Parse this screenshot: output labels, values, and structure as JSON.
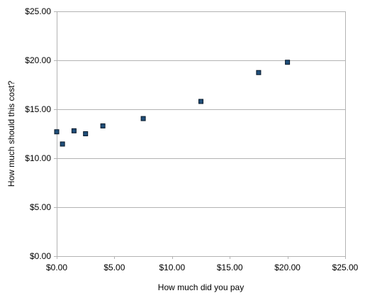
{
  "chart_data": {
    "type": "scatter",
    "title": "",
    "xlabel": "How much did you pay",
    "ylabel": "How much should this cost?",
    "xlim": [
      0,
      25
    ],
    "ylim": [
      0,
      25
    ],
    "x_ticks": [
      0,
      5,
      10,
      15,
      20,
      25
    ],
    "y_ticks": [
      0,
      5,
      10,
      15,
      20,
      25
    ],
    "x_tick_labels": [
      "$0.00",
      "$5.00",
      "$10.00",
      "$15.00",
      "$20.00",
      "$25.00"
    ],
    "y_tick_labels": [
      "$0.00",
      "$5.00",
      "$10.00",
      "$15.00",
      "$20.00",
      "$25.00"
    ],
    "grid": "horizontal",
    "legend": "none",
    "marker": "square",
    "marker_color": "#1f4e79",
    "marker_edge_color": "#0a1a2a",
    "grid_color": "#b3b3b3",
    "series": [
      {
        "points": [
          {
            "x": 0.0,
            "y": 12.7
          },
          {
            "x": 0.5,
            "y": 11.45
          },
          {
            "x": 1.5,
            "y": 12.8
          },
          {
            "x": 2.5,
            "y": 12.5
          },
          {
            "x": 4.0,
            "y": 13.3
          },
          {
            "x": 7.5,
            "y": 14.05
          },
          {
            "x": 12.5,
            "y": 15.8
          },
          {
            "x": 17.5,
            "y": 18.75
          },
          {
            "x": 20.0,
            "y": 19.8
          }
        ]
      }
    ]
  }
}
